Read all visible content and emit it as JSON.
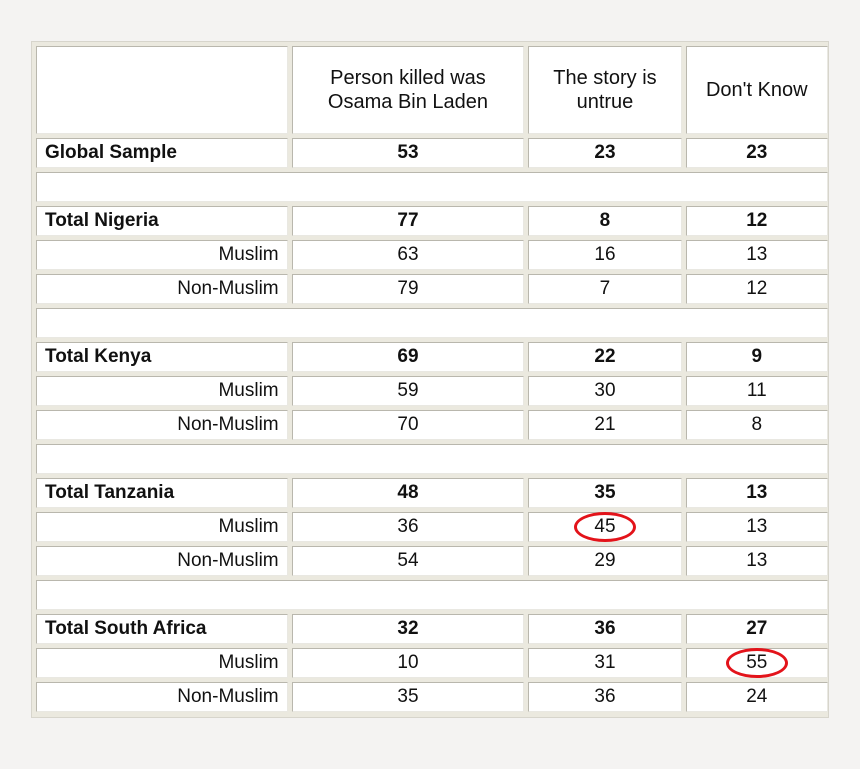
{
  "chart_data": {
    "type": "table",
    "columns": [
      "",
      "Person killed was Osama Bin Laden",
      "The story is untrue",
      "Don't Know"
    ],
    "column_lines": [
      [
        ""
      ],
      [
        "Person killed was",
        "Osama Bin Laden"
      ],
      [
        "The story is",
        "untrue"
      ],
      [
        "Don't Know"
      ]
    ],
    "rows": [
      {
        "kind": "total",
        "label": "Global Sample",
        "values": [
          "53",
          "23",
          "23"
        ]
      },
      {
        "kind": "spacer"
      },
      {
        "kind": "total",
        "label": "Total Nigeria",
        "values": [
          "77",
          "8",
          "12"
        ]
      },
      {
        "kind": "sub",
        "label": "Muslim",
        "values": [
          "63",
          "16",
          "13"
        ]
      },
      {
        "kind": "sub",
        "label": "Non-Muslim",
        "values": [
          "79",
          "7",
          "12"
        ]
      },
      {
        "kind": "spacer"
      },
      {
        "kind": "total",
        "label": "Total Kenya",
        "values": [
          "69",
          "22",
          "9"
        ]
      },
      {
        "kind": "sub",
        "label": "Muslim",
        "values": [
          "59",
          "30",
          "11"
        ]
      },
      {
        "kind": "sub",
        "label": "Non-Muslim",
        "values": [
          "70",
          "21",
          "8"
        ]
      },
      {
        "kind": "spacer"
      },
      {
        "kind": "total",
        "label": "Total Tanzania",
        "values": [
          "48",
          "35",
          "13"
        ]
      },
      {
        "kind": "sub",
        "label": "Muslim",
        "values": [
          "36",
          "45",
          "13"
        ],
        "circled": [
          1
        ]
      },
      {
        "kind": "sub",
        "label": "Non-Muslim",
        "values": [
          "54",
          "29",
          "13"
        ]
      },
      {
        "kind": "spacer"
      },
      {
        "kind": "total",
        "label": "Total South Africa",
        "values": [
          "32",
          "36",
          "27"
        ]
      },
      {
        "kind": "sub",
        "label": "Muslim",
        "values": [
          "10",
          "31",
          "55"
        ],
        "circled": [
          2
        ]
      },
      {
        "kind": "sub",
        "label": "Non-Muslim",
        "values": [
          "35",
          "36",
          "24"
        ]
      }
    ],
    "highlight_color": "#e3131a"
  }
}
